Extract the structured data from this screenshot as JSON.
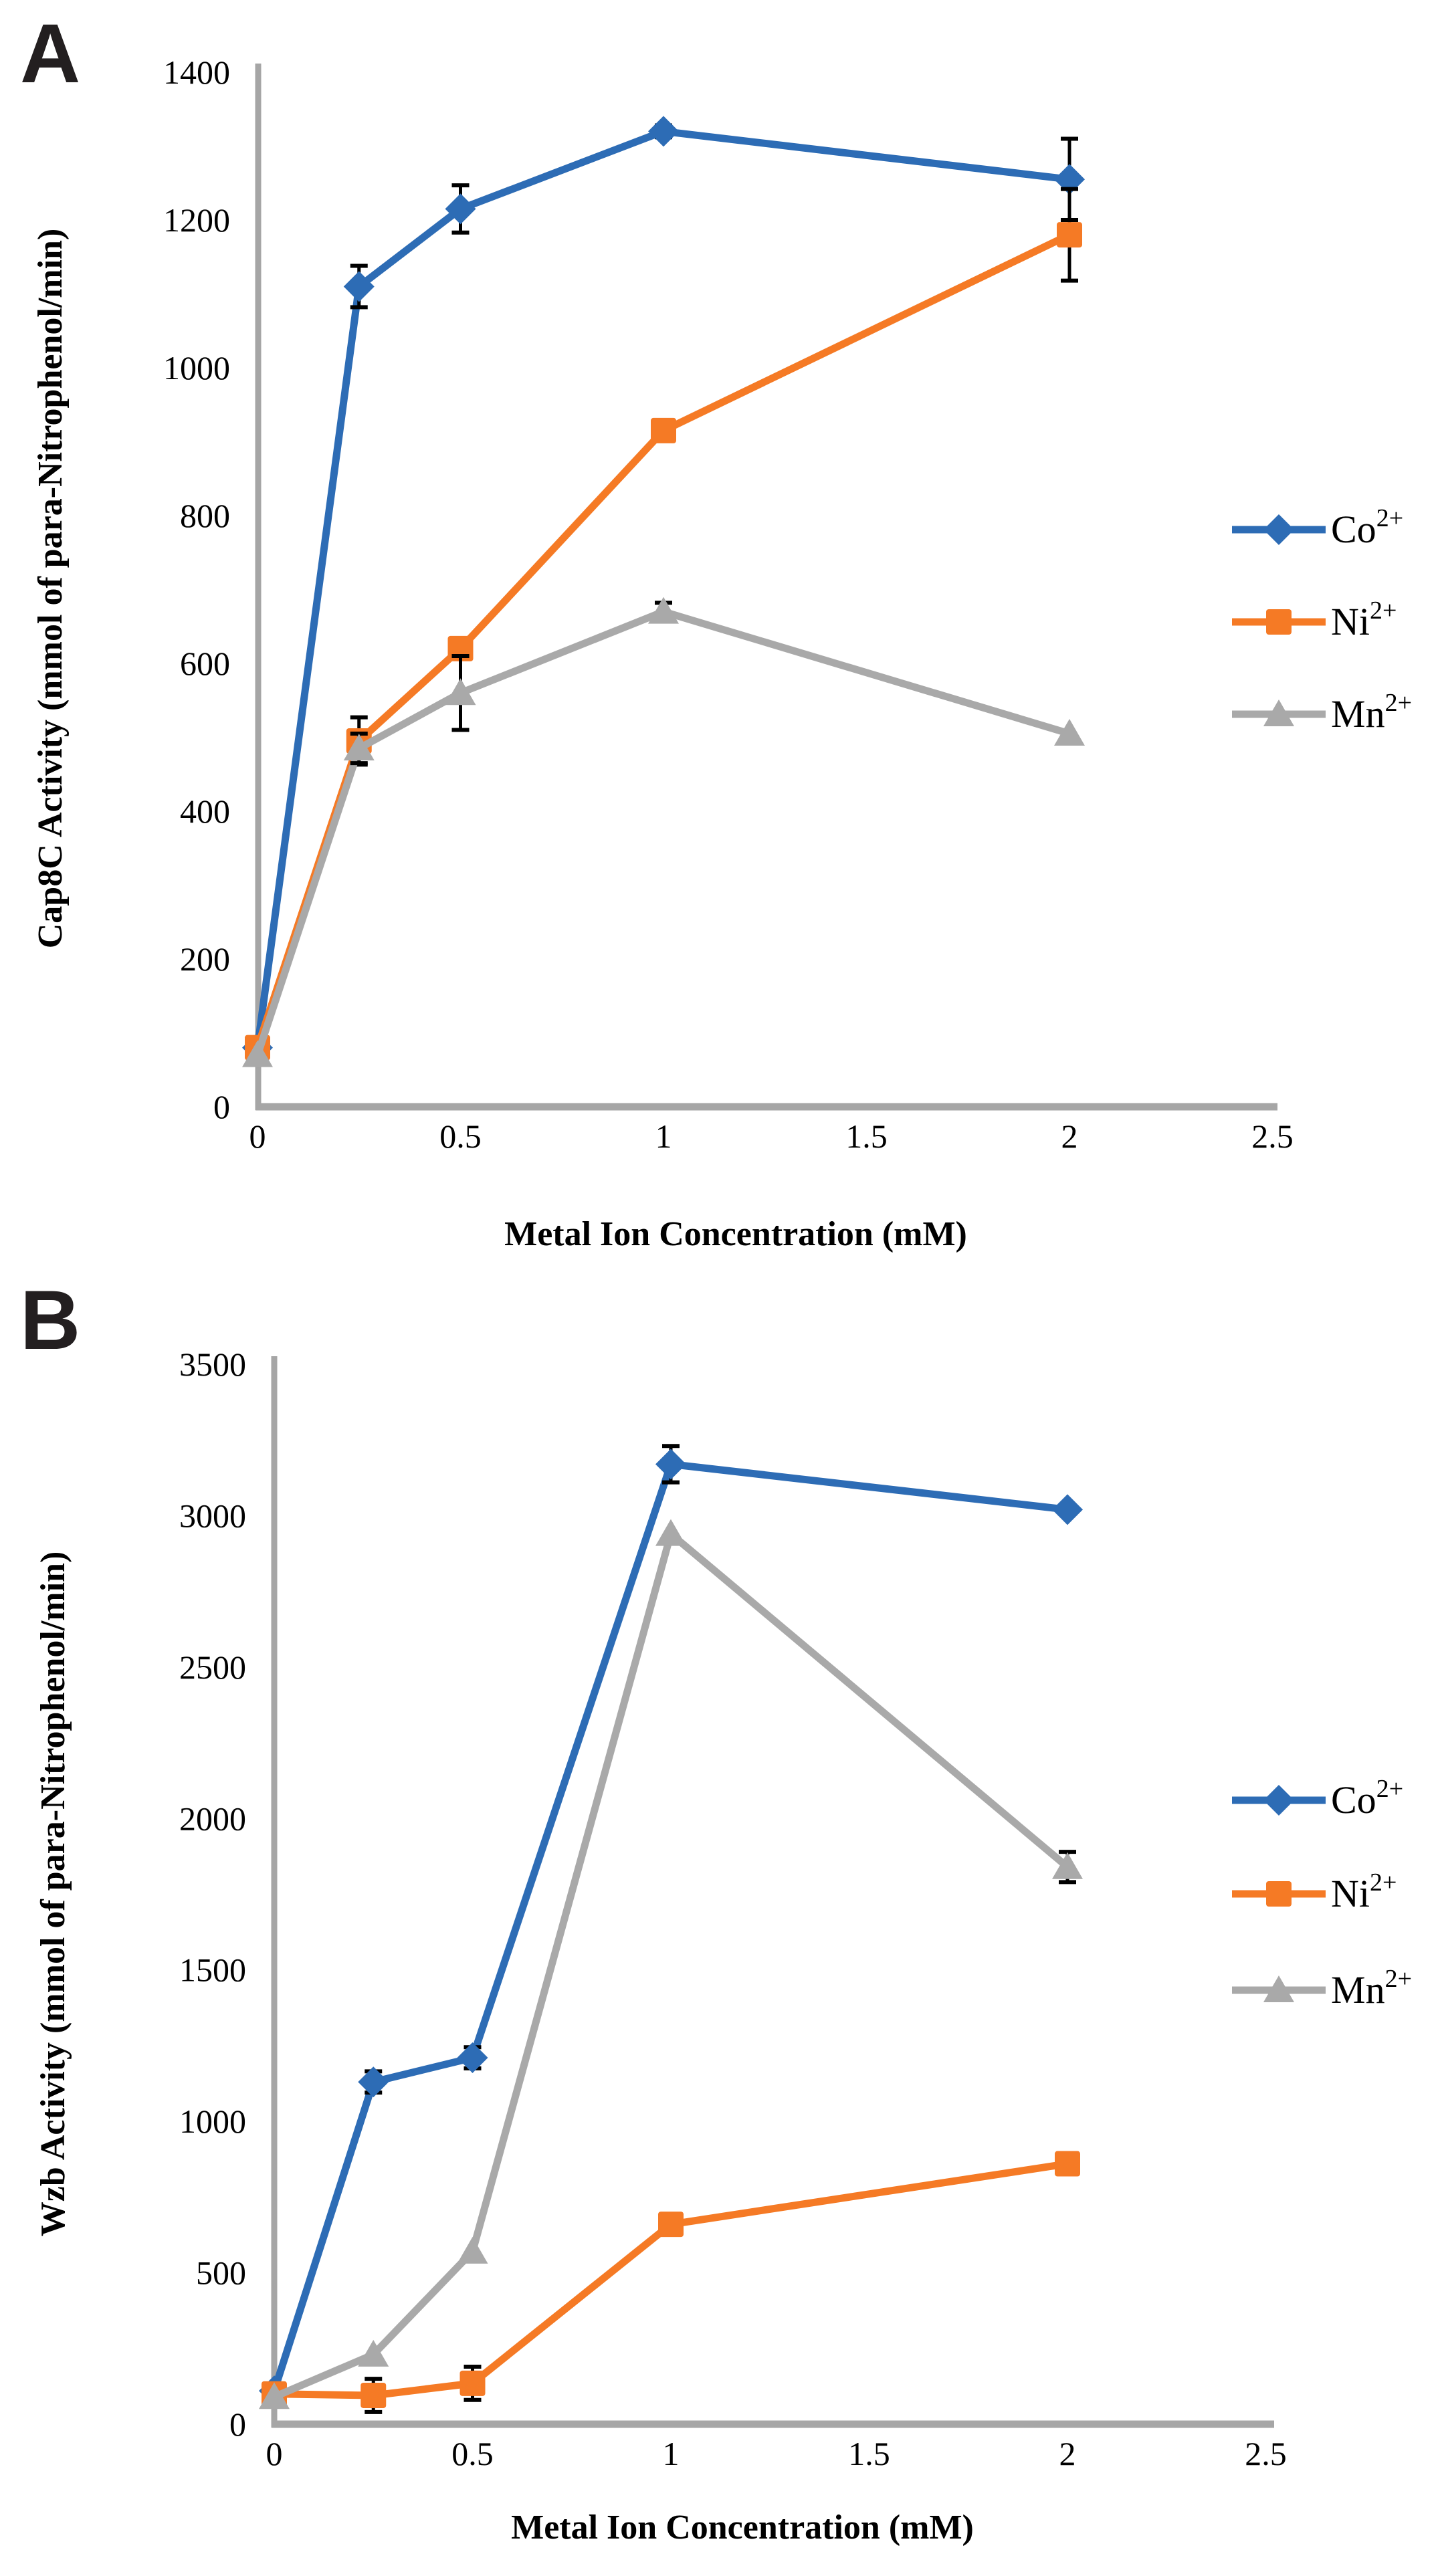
{
  "figure": {
    "panel_a": {
      "letter": "A"
    },
    "panel_b": {
      "letter": "B"
    },
    "colors": {
      "axis": "#a6a6a6",
      "error_bar": "#000000",
      "text": "#000000",
      "background": "#ffffff",
      "co_blue": "#2d6cb5",
      "ni_orange": "#f57a25",
      "mn_gray": "#a9a9a9"
    }
  },
  "chart_data": [
    {
      "type": "line",
      "panel": "A",
      "title": "",
      "xlabel": "Metal Ion Concentration (mM)",
      "ylabel": "Cap8C Activity (mmol of para-Nitrophenol/min)",
      "x": [
        0,
        0.25,
        0.5,
        1,
        2
      ],
      "xlim": [
        0,
        2.5
      ],
      "xticks": [
        0,
        0.5,
        1,
        1.5,
        2,
        2.5
      ],
      "xtick_labels": [
        "0",
        "0.5",
        "1",
        "1.5",
        "2",
        "2.5"
      ],
      "ylim": [
        0,
        1400
      ],
      "yticks": [
        0,
        200,
        400,
        600,
        800,
        1000,
        1200,
        1400
      ],
      "grid": false,
      "legend_position": "right-middle",
      "series": [
        {
          "name": "Co2+",
          "label": "Co",
          "charge": "2+",
          "marker": "diamond",
          "color": "#2d6cb5",
          "values": [
            80,
            1110,
            1215,
            1320,
            1255
          ],
          "errors": [
            0,
            28,
            32,
            8,
            55
          ]
        },
        {
          "name": "Ni2+",
          "label": "Ni",
          "charge": "2+",
          "marker": "square",
          "color": "#f57a25",
          "values": [
            80,
            495,
            620,
            915,
            1180
          ],
          "errors": [
            0,
            32,
            0,
            0,
            62
          ]
        },
        {
          "name": "Mn2+",
          "label": "Mn",
          "charge": "2+",
          "marker": "triangle",
          "color": "#a9a9a9",
          "values": [
            70,
            485,
            560,
            670,
            505
          ],
          "errors": [
            0,
            20,
            50,
            12,
            0
          ]
        }
      ]
    },
    {
      "type": "line",
      "panel": "B",
      "title": "",
      "xlabel": "Metal Ion Concentration (mM)",
      "ylabel": "Wzb Activity (mmol of para-Nitrophenol/min)",
      "x": [
        0,
        0.25,
        0.5,
        1,
        2
      ],
      "xlim": [
        0,
        2.5
      ],
      "xticks": [
        0,
        0.5,
        1,
        1.5,
        2,
        2.5
      ],
      "xtick_labels": [
        "0",
        "0.5",
        "1",
        "1.5",
        "2",
        "2.5"
      ],
      "ylim": [
        0,
        3500
      ],
      "yticks": [
        0,
        500,
        1000,
        1500,
        2000,
        2500,
        3000,
        3500
      ],
      "grid": false,
      "legend_position": "right-middle",
      "series": [
        {
          "name": "Co2+",
          "label": "Co",
          "charge": "2+",
          "marker": "diamond",
          "color": "#2d6cb5",
          "values": [
            110,
            1130,
            1210,
            3170,
            3020
          ],
          "errors": [
            0,
            35,
            35,
            60,
            0
          ]
        },
        {
          "name": "Ni2+",
          "label": "Ni",
          "charge": "2+",
          "marker": "square",
          "color": "#f57a25",
          "values": [
            100,
            95,
            135,
            660,
            860
          ],
          "errors": [
            0,
            55,
            55,
            0,
            0
          ]
        },
        {
          "name": "Mn2+",
          "label": "Mn",
          "charge": "2+",
          "marker": "triangle",
          "color": "#a9a9a9",
          "values": [
            90,
            230,
            570,
            2940,
            1840
          ],
          "errors": [
            0,
            0,
            0,
            0,
            50
          ]
        }
      ]
    }
  ]
}
